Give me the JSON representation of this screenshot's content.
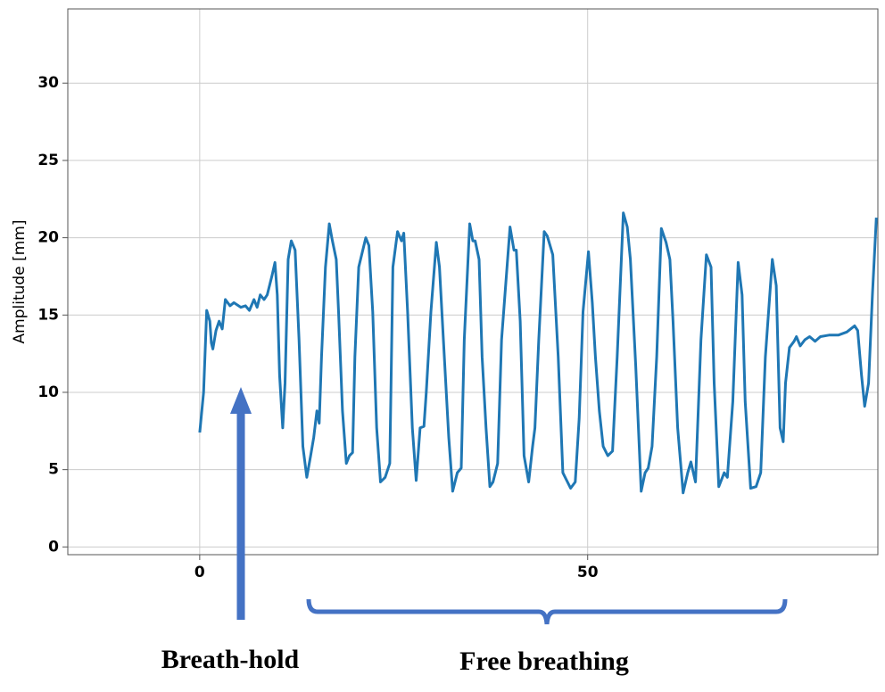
{
  "chart_data": {
    "type": "line",
    "y_label": "Amplitude [mm]",
    "color": "#1f77b4",
    "grid": true,
    "xlim": [
      -17,
      87.4
    ],
    "ylim": [
      -0.5,
      34.8
    ],
    "xticks": [
      0,
      50
    ],
    "yticks": [
      0,
      5,
      10,
      15,
      20,
      25,
      30
    ],
    "annotations": [
      "Breath-hold",
      "Free breathing"
    ],
    "x": [
      0.0,
      0.5,
      0.9,
      1.3,
      1.5,
      1.7,
      2.1,
      2.5,
      2.9,
      3.3,
      3.9,
      4.4,
      5.3,
      5.9,
      6.4,
      7.0,
      7.4,
      7.8,
      8.3,
      8.7,
      9.3,
      9.7,
      10.0,
      10.3,
      10.7,
      11.0,
      11.4,
      11.8,
      12.3,
      12.8,
      13.3,
      13.8,
      14.3,
      14.7,
      15.1,
      15.4,
      15.7,
      16.2,
      16.7,
      17.1,
      17.6,
      17.9,
      18.4,
      18.9,
      19.3,
      19.7,
      20.0,
      20.5,
      21.4,
      21.8,
      22.3,
      22.8,
      23.3,
      23.9,
      24.5,
      24.9,
      25.5,
      26.0,
      26.3,
      26.8,
      27.4,
      27.9,
      28.4,
      28.9,
      29.2,
      29.8,
      30.5,
      30.9,
      31.4,
      32.1,
      32.6,
      33.2,
      33.7,
      34.1,
      34.8,
      35.2,
      35.5,
      36.0,
      36.4,
      36.9,
      37.4,
      37.8,
      38.4,
      38.9,
      40.0,
      40.5,
      40.8,
      41.3,
      41.8,
      42.4,
      42.9,
      43.2,
      43.7,
      44.4,
      44.8,
      45.5,
      46.2,
      46.8,
      47.8,
      48.4,
      48.9,
      49.4,
      50.1,
      50.6,
      51.0,
      51.5,
      52.0,
      52.6,
      53.2,
      53.8,
      54.6,
      55.1,
      55.5,
      56.2,
      56.9,
      57.4,
      57.8,
      58.3,
      58.9,
      59.5,
      60.1,
      60.6,
      61.0,
      61.6,
      62.3,
      62.9,
      63.3,
      63.9,
      64.6,
      65.3,
      65.9,
      66.3,
      66.9,
      67.6,
      68.0,
      68.7,
      69.4,
      69.9,
      70.3,
      71.0,
      71.7,
      72.3,
      72.9,
      73.8,
      74.3,
      74.8,
      75.2,
      75.5,
      76.0,
      76.6,
      76.9,
      77.4,
      78.0,
      78.6,
      79.3,
      80.0,
      81.1,
      82.3,
      83.4,
      84.4,
      84.8,
      85.3,
      85.7,
      86.2,
      86.7,
      87.2
    ],
    "values": [
      7.4,
      10.0,
      15.3,
      14.6,
      13.2,
      12.8,
      14.0,
      14.6,
      14.1,
      16.0,
      15.6,
      15.8,
      15.5,
      15.6,
      15.3,
      16.0,
      15.5,
      16.3,
      16.0,
      16.3,
      17.5,
      18.4,
      16.3,
      11.1,
      7.7,
      10.6,
      18.6,
      19.8,
      19.2,
      13.4,
      6.5,
      4.5,
      5.9,
      7.1,
      8.8,
      8.0,
      12.3,
      18.1,
      20.9,
      19.8,
      18.6,
      15.2,
      8.8,
      5.4,
      5.9,
      6.1,
      12.3,
      18.1,
      20.0,
      19.5,
      15.2,
      7.7,
      4.2,
      4.5,
      5.4,
      18.1,
      20.4,
      19.8,
      20.3,
      15.2,
      7.7,
      4.3,
      7.7,
      7.8,
      10.0,
      15.2,
      19.7,
      18.1,
      13.4,
      7.1,
      3.6,
      4.8,
      5.1,
      13.4,
      20.9,
      19.8,
      19.8,
      18.6,
      12.3,
      7.7,
      3.9,
      4.2,
      5.4,
      13.4,
      20.7,
      19.2,
      19.2,
      14.6,
      5.9,
      4.2,
      6.5,
      7.7,
      13.4,
      20.4,
      20.1,
      18.9,
      12.3,
      4.8,
      3.8,
      4.2,
      8.3,
      15.2,
      19.1,
      15.8,
      12.3,
      8.8,
      6.5,
      5.9,
      6.2,
      12.3,
      21.6,
      20.7,
      18.6,
      11.7,
      3.6,
      4.8,
      5.1,
      6.5,
      12.3,
      20.6,
      19.7,
      18.6,
      14.6,
      7.7,
      3.5,
      4.8,
      5.5,
      4.2,
      13.4,
      18.9,
      18.1,
      10.6,
      3.9,
      4.8,
      4.5,
      9.4,
      18.4,
      16.3,
      9.4,
      3.8,
      3.9,
      4.8,
      12.3,
      18.6,
      16.9,
      7.7,
      6.8,
      10.6,
      12.9,
      13.3,
      13.6,
      13.0,
      13.4,
      13.6,
      13.3,
      13.6,
      13.7,
      13.7,
      13.9,
      14.3,
      14.0,
      11.1,
      9.1,
      10.6,
      16.3,
      21.3
    ]
  }
}
